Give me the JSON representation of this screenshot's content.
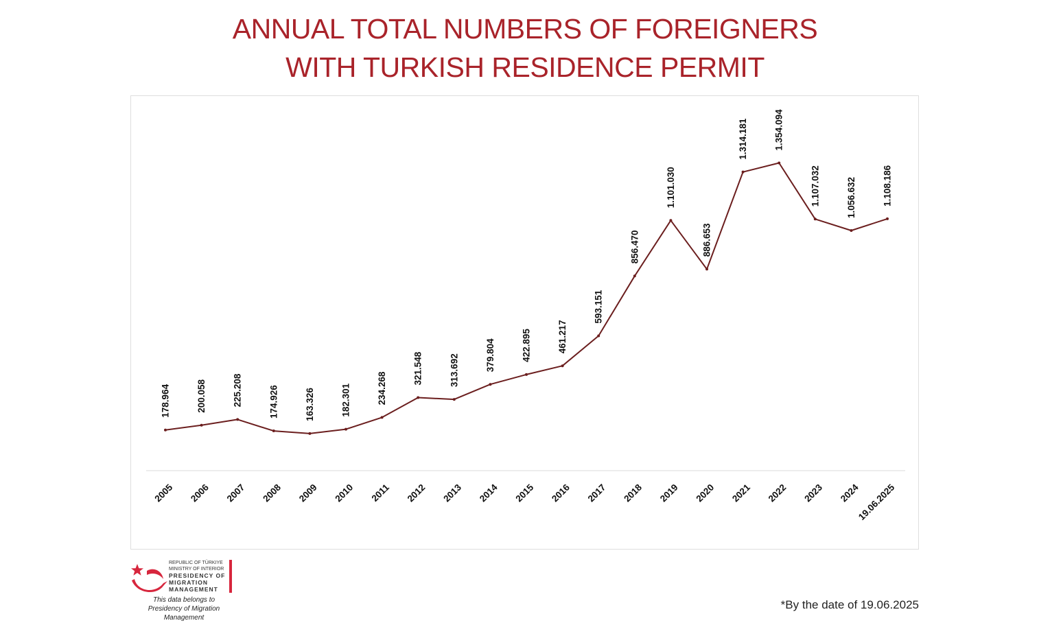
{
  "title_line1": "ANNUAL TOTAL NUMBERS OF FOREIGNERS",
  "title_line2": "WITH TURKISH RESIDENCE PERMIT",
  "logo": {
    "line1": "REPUBLIC OF TÜRKIYE",
    "line2": "MINISTRY OF INTERIOR",
    "line3": "PRESIDENCY OF",
    "line4": "MIGRATION MANAGEMENT"
  },
  "credit_line1": "This data belongs to",
  "credit_line2": "Presidency of Migration Management",
  "footnote": "*By the date of 19.06.2025",
  "colors": {
    "title": "#a9232a",
    "line": "#6b1e1e",
    "axis": "#d9d9d9",
    "brand": "#d7263d"
  },
  "chart_data": {
    "type": "line",
    "categories": [
      "2005",
      "2006",
      "2007",
      "2008",
      "2009",
      "2010",
      "2011",
      "2012",
      "2013",
      "2014",
      "2015",
      "2016",
      "2017",
      "2018",
      "2019",
      "2020",
      "2021",
      "2022",
      "2023",
      "2024",
      "19.06.2025"
    ],
    "values": [
      178964,
      200058,
      225208,
      174926,
      163326,
      182301,
      234268,
      321548,
      313692,
      379804,
      422895,
      461217,
      593151,
      856470,
      1101030,
      886653,
      1314181,
      1354094,
      1107032,
      1056632,
      1108186
    ],
    "data_labels": [
      "178.964",
      "200.058",
      "225.208",
      "174.926",
      "163.326",
      "182.301",
      "234.268",
      "321.548",
      "313.692",
      "379.804",
      "422.895",
      "461.217",
      "593.151",
      "856.470",
      "1.101.030",
      "886.653",
      "1.314.181",
      "1.354.094",
      "1.107.032",
      "1.056.632",
      "1.108.186"
    ],
    "ylim": [
      0,
      1600000
    ],
    "grid": false,
    "legend": false
  }
}
